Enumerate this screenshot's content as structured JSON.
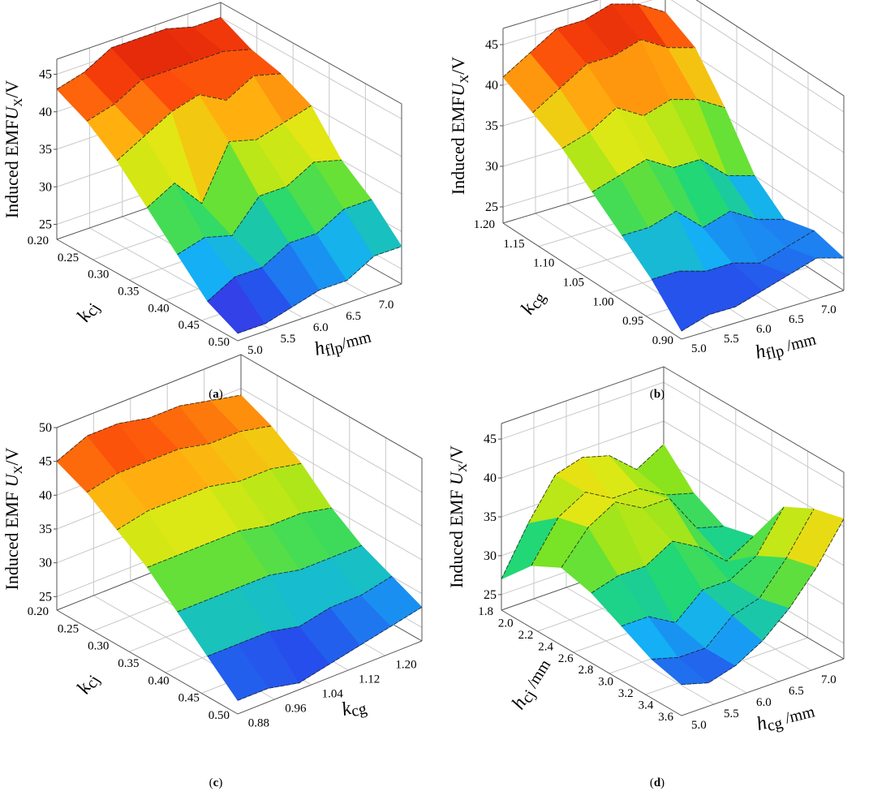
{
  "chart_data": [
    {
      "id": "a",
      "type": "surface3d",
      "panel_label": "a",
      "zlabel": {
        "prefix": "Induced EMF",
        "var": "U",
        "sub": "X",
        "unit": "/V"
      },
      "zticks": [
        "25",
        "30",
        "35",
        "40",
        "45"
      ],
      "zlim": [
        23,
        47
      ],
      "left_axis": {
        "label_var": "k",
        "label_sub": "cj",
        "label_unit": "",
        "ticks": [
          "0.20",
          "0.25",
          "0.30",
          "0.35",
          "0.40",
          "0.45",
          "0.50"
        ]
      },
      "right_axis": {
        "label_var": "h",
        "label_sub": "flp",
        "label_unit": "/mm",
        "ticks": [
          "5.0",
          "5.5",
          "6.0",
          "6.5",
          "7.0"
        ]
      },
      "surface_rows": [
        [
          43,
          44,
          46,
          46,
          46,
          45,
          45
        ],
        [
          41,
          42,
          44,
          44,
          44,
          44,
          43
        ],
        [
          38,
          40,
          42,
          43,
          41,
          43,
          42
        ],
        [
          34,
          36,
          32,
          39,
          38,
          39,
          40
        ],
        [
          30,
          31,
          30,
          34,
          34,
          36,
          35
        ],
        [
          26,
          28,
          28,
          30,
          30,
          32,
          32
        ],
        [
          24,
          24,
          25,
          26,
          26,
          28,
          28
        ]
      ]
    },
    {
      "id": "b",
      "type": "surface3d",
      "panel_label": "b",
      "zlabel": {
        "prefix": "Induced EMF",
        "var": "U",
        "sub": "X",
        "unit": "/V"
      },
      "zticks": [
        "25",
        "30",
        "35",
        "40",
        "45"
      ],
      "zlim": [
        23,
        47
      ],
      "left_axis": {
        "label_var": "k",
        "label_sub": "cg",
        "label_unit": "",
        "ticks": [
          "1.20",
          "1.15",
          "1.10",
          "1.05",
          "1.00",
          "0.95",
          "0.90"
        ]
      },
      "right_axis": {
        "label_var": "h",
        "label_sub": "flp",
        "label_unit": " /mm",
        "ticks": [
          "5.0",
          "5.5",
          "6.0",
          "6.5",
          "7.0"
        ]
      },
      "surface_rows": [
        [
          41,
          43,
          45,
          45,
          46,
          45,
          43
        ],
        [
          39,
          41,
          43,
          43,
          44,
          42,
          41
        ],
        [
          37,
          38,
          40,
          38,
          39,
          38,
          36
        ],
        [
          34,
          35,
          36,
          34,
          34,
          31,
          30
        ],
        [
          31,
          31,
          32,
          29,
          30,
          28,
          27
        ],
        [
          28,
          28,
          27,
          27,
          26,
          27,
          28
        ],
        [
          24,
          25,
          25,
          26,
          27,
          28,
          27
        ]
      ]
    },
    {
      "id": "c",
      "type": "surface3d",
      "panel_label": "c",
      "zlabel": {
        "prefix": "Induced EMF ",
        "var": "U",
        "sub": "X",
        "unit": "/V"
      },
      "zticks": [
        "25",
        "30",
        "35",
        "40",
        "45",
        "50"
      ],
      "zlim": [
        23,
        50
      ],
      "left_axis": {
        "label_var": "k",
        "label_sub": "cj",
        "label_unit": "",
        "ticks": [
          "0.20",
          "0.25",
          "0.30",
          "0.35",
          "0.40",
          "0.45",
          "0.50"
        ]
      },
      "right_axis": {
        "label_var": "k",
        "label_sub": "cg",
        "label_unit": "",
        "ticks": [
          "0.88",
          "0.96",
          "1.04",
          "1.12",
          "1.20"
        ]
      },
      "surface_rows": [
        [
          45,
          47,
          47,
          46,
          46,
          45,
          44
        ],
        [
          43,
          44,
          44,
          44,
          43,
          43,
          42
        ],
        [
          40,
          41,
          41,
          41,
          40,
          40,
          39
        ],
        [
          37,
          37,
          37,
          37,
          36,
          36,
          35
        ],
        [
          33,
          33,
          33,
          33,
          32,
          32,
          32
        ],
        [
          29,
          29,
          29,
          28,
          29,
          29,
          30
        ],
        [
          25,
          25,
          24,
          25,
          26,
          27,
          28
        ]
      ]
    },
    {
      "id": "d",
      "type": "surface3d",
      "panel_label": "d",
      "zlabel": {
        "prefix": "Induced EMF ",
        "var": "U",
        "sub": "X",
        "unit": "/V"
      },
      "zticks": [
        "25",
        "30",
        "35",
        "40",
        "45"
      ],
      "zlim": [
        23,
        47
      ],
      "left_axis": {
        "label_var": "h",
        "label_sub": "cj",
        "label_unit": " /mm",
        "ticks": [
          "1.8",
          "2.0",
          "2.2",
          "2.4",
          "2.6",
          "2.8",
          "3.0",
          "3.2",
          "3.4",
          "3.6"
        ]
      },
      "right_axis": {
        "label_var": "h",
        "label_sub": "cg",
        "label_unit": " /mm",
        "ticks": [
          "5.0",
          "5.5",
          "6.0",
          "6.5",
          "7.0"
        ]
      },
      "surface_rows": [
        [
          27,
          33,
          38,
          39,
          38,
          35,
          37
        ],
        [
          31,
          36,
          38,
          36,
          36,
          34,
          33
        ],
        [
          33,
          37,
          39,
          37,
          37,
          32,
          31
        ],
        [
          32,
          33,
          33,
          35,
          33,
          30,
          32
        ],
        [
          30,
          30,
          28,
          31,
          31,
          33,
          38
        ],
        [
          28,
          27,
          27,
          30,
          31,
          35,
          40
        ],
        [
          27,
          26,
          27,
          29,
          32,
          36,
          41
        ]
      ]
    }
  ]
}
